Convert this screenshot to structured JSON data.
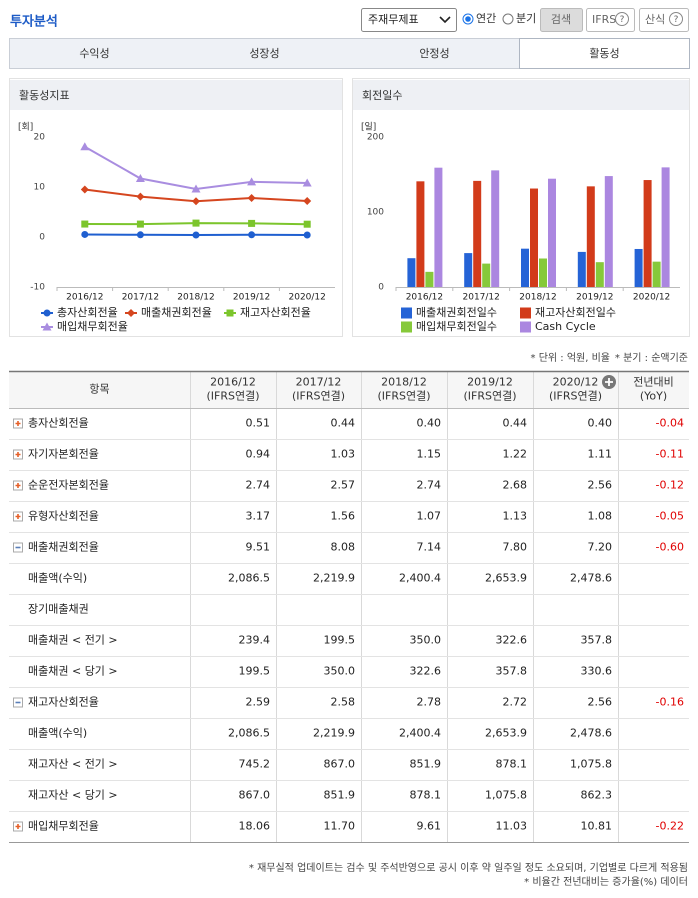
{
  "header": {
    "title": "투자분석",
    "statement_select": "주재무제표",
    "radio_options": [
      "연간",
      "분기"
    ],
    "radio_selected": 0,
    "buttons": [
      {
        "label": "검색"
      },
      {
        "label": "IFRS",
        "help_icon": "?"
      },
      {
        "label": "산식",
        "help_icon": "?"
      }
    ]
  },
  "tabs": {
    "items": [
      "수익성",
      "성장성",
      "안정성",
      "활동성"
    ],
    "active": 3
  },
  "chart_data": [
    {
      "type": "line",
      "title": "활동성지표",
      "y_label": "[회]",
      "categories": [
        "2016/12",
        "2017/12",
        "2018/12",
        "2019/12",
        "2020/12"
      ],
      "ylim": [
        -10,
        20
      ],
      "yticks": [
        -10,
        0,
        10,
        20
      ],
      "grid": false,
      "series": [
        {
          "name": "총자산회전율",
          "color": "#1f5fd0",
          "marker": "circle",
          "values": [
            0.51,
            0.44,
            0.4,
            0.44,
            0.4
          ]
        },
        {
          "name": "매출채권회전율",
          "color": "#d5461f",
          "marker": "diamond",
          "values": [
            9.51,
            8.08,
            7.14,
            7.8,
            7.2
          ]
        },
        {
          "name": "재고자산회전율",
          "color": "#7cc52c",
          "marker": "square",
          "values": [
            2.59,
            2.58,
            2.78,
            2.72,
            2.56
          ]
        },
        {
          "name": "매입채무회전율",
          "color": "#a98de0",
          "marker": "triangle",
          "values": [
            18.06,
            11.7,
            9.61,
            11.03,
            10.81
          ]
        }
      ]
    },
    {
      "type": "bar",
      "title": "회전일수",
      "y_label": "[일]",
      "categories": [
        "2016/12",
        "2017/12",
        "2018/12",
        "2019/12",
        "2020/12"
      ],
      "ylim": [
        0,
        200
      ],
      "yticks": [
        0,
        100,
        200
      ],
      "grid": false,
      "series": [
        {
          "name": "매출채권회전일수",
          "color": "#2563d6",
          "values": [
            38.4,
            45.2,
            51.1,
            46.8,
            50.7
          ]
        },
        {
          "name": "재고자산회전일수",
          "color": "#d23b1a",
          "values": [
            140.9,
            141.5,
            131.3,
            134.2,
            142.6
          ]
        },
        {
          "name": "매입채무회전일수",
          "color": "#86c93a",
          "values": [
            20.2,
            31.2,
            38.0,
            33.1,
            33.8
          ]
        },
        {
          "name": "Cash Cycle",
          "color": "#ab87e0",
          "values": [
            159.1,
            155.5,
            144.4,
            147.9,
            159.5
          ]
        }
      ]
    }
  ],
  "table": {
    "notes": [
      "* 단위 : 억원, 비율",
      "* 분기 : 순액기준"
    ],
    "columns": [
      {
        "lines": [
          "항목"
        ]
      },
      {
        "lines": [
          "2016/12",
          "(IFRS연결)"
        ]
      },
      {
        "lines": [
          "2017/12",
          "(IFRS연결)"
        ]
      },
      {
        "lines": [
          "2018/12",
          "(IFRS연결)"
        ]
      },
      {
        "lines": [
          "2019/12",
          "(IFRS연결)"
        ]
      },
      {
        "lines": [
          "2020/12",
          "(IFRS연결)"
        ]
      },
      {
        "lines": [
          "전년대비",
          "(YoY)"
        ]
      }
    ],
    "rows": [
      {
        "label": "총자산회전율",
        "toggle": "expand",
        "cells": [
          "0.51",
          "0.44",
          "0.40",
          "0.44",
          "0.40"
        ],
        "yoy": "-0.04"
      },
      {
        "label": "자기자본회전율",
        "toggle": "expand",
        "cells": [
          "0.94",
          "1.03",
          "1.15",
          "1.22",
          "1.11"
        ],
        "yoy": "-0.11"
      },
      {
        "label": "순운전자본회전율",
        "toggle": "expand",
        "cells": [
          "2.74",
          "2.57",
          "2.74",
          "2.68",
          "2.56"
        ],
        "yoy": "-0.12"
      },
      {
        "label": "유형자산회전율",
        "toggle": "expand",
        "cells": [
          "3.17",
          "1.56",
          "1.07",
          "1.13",
          "1.08"
        ],
        "yoy": "-0.05"
      },
      {
        "label": "매출채권회전율",
        "toggle": "collapse",
        "cells": [
          "9.51",
          "8.08",
          "7.14",
          "7.80",
          "7.20"
        ],
        "yoy": "-0.60"
      },
      {
        "label": "매출액(수익)",
        "cells": [
          "2,086.5",
          "2,219.9",
          "2,400.4",
          "2,653.9",
          "2,478.6"
        ]
      },
      {
        "label": "장기매출채권",
        "cells": [
          null,
          null,
          null,
          null,
          null
        ]
      },
      {
        "label": "매출채권 < 전기 >",
        "cells": [
          "239.4",
          "199.5",
          "350.0",
          "322.6",
          "357.8"
        ]
      },
      {
        "label": "매출채권 < 당기 >",
        "cells": [
          "199.5",
          "350.0",
          "322.6",
          "357.8",
          "330.6"
        ]
      },
      {
        "label": "재고자산회전율",
        "toggle": "collapse",
        "cells": [
          "2.59",
          "2.58",
          "2.78",
          "2.72",
          "2.56"
        ],
        "yoy": "-0.16"
      },
      {
        "label": "매출액(수익)",
        "cells": [
          "2,086.5",
          "2,219.9",
          "2,400.4",
          "2,653.9",
          "2,478.6"
        ]
      },
      {
        "label": "재고자산 < 전기 >",
        "cells": [
          "745.2",
          "867.0",
          "851.9",
          "878.1",
          "1,075.8"
        ]
      },
      {
        "label": "재고자산 < 당기 >",
        "cells": [
          "867.0",
          "851.9",
          "878.1",
          "1,075.8",
          "862.3"
        ]
      },
      {
        "label": "매입채무회전율",
        "toggle": "expand",
        "cells": [
          "18.06",
          "11.70",
          "9.61",
          "11.03",
          "10.81"
        ],
        "yoy": "-0.22"
      }
    ]
  },
  "footnotes": [
    "* 재무실적 업데이트는 검수 및 주석반영으로 공시 이후 약 일주일 정도 소요되며, 기업별로 다르게 적용됨",
    "* 비율간 전년대비는 증가율(%) 데이터"
  ]
}
